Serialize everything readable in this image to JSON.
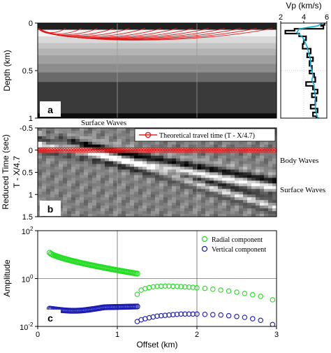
{
  "figure": {
    "panel_labels": {
      "a": "a",
      "b": "b",
      "c": "c"
    },
    "annotations": {
      "surface_top": "Surface Waves",
      "body_waves": "Body Waves",
      "surface_right": "Surface Waves"
    }
  },
  "chart_data": [
    {
      "id": "a",
      "type": "heatmap",
      "ylabel": "Depth (km)",
      "xlim": [
        0,
        3
      ],
      "ylim": [
        1,
        0
      ],
      "yticks": [
        "0",
        "0.5",
        "1"
      ],
      "grid": true,
      "layers": [
        {
          "top": 0.0,
          "bottom": 0.07,
          "gray": "#202020"
        },
        {
          "top": 0.07,
          "bottom": 0.14,
          "gray": "#f2f2f2"
        },
        {
          "top": 0.14,
          "bottom": 0.21,
          "gray": "#d9d9d9"
        },
        {
          "top": 0.21,
          "bottom": 0.27,
          "gray": "#c4c4c4"
        },
        {
          "top": 0.27,
          "bottom": 0.34,
          "gray": "#b3b3b3"
        },
        {
          "top": 0.34,
          "bottom": 0.43,
          "gray": "#a0a0a0"
        },
        {
          "top": 0.43,
          "bottom": 0.52,
          "gray": "#8c8c8c"
        },
        {
          "top": 0.52,
          "bottom": 0.62,
          "gray": "#6a6a6a"
        },
        {
          "top": 0.62,
          "bottom": 0.95,
          "gray": "#3a3a3a"
        },
        {
          "top": 0.95,
          "bottom": 1.0,
          "gray": "#0d0d0d"
        }
      ],
      "rays": [
        {
          "start": 0.0,
          "end": 0.35,
          "depth": 0.05
        },
        {
          "start": 0.0,
          "end": 0.55,
          "depth": 0.07
        },
        {
          "start": 0.0,
          "end": 0.75,
          "depth": 0.08
        },
        {
          "start": 0.0,
          "end": 0.95,
          "depth": 0.09
        },
        {
          "start": 0.0,
          "end": 1.15,
          "depth": 0.1
        },
        {
          "start": 0.0,
          "end": 1.35,
          "depth": 0.11
        },
        {
          "start": 0.0,
          "end": 1.55,
          "depth": 0.12
        },
        {
          "start": 0.0,
          "end": 1.75,
          "depth": 0.125
        },
        {
          "start": 0.0,
          "end": 1.95,
          "depth": 0.13
        },
        {
          "start": 0.0,
          "end": 2.15,
          "depth": 0.135
        },
        {
          "start": 0.0,
          "end": 2.35,
          "depth": 0.14
        },
        {
          "start": 0.0,
          "end": 2.55,
          "depth": 0.145
        },
        {
          "start": 0.0,
          "end": 2.75,
          "depth": 0.15
        },
        {
          "start": 0.0,
          "end": 2.95,
          "depth": 0.155
        }
      ]
    },
    {
      "id": "vp",
      "type": "line",
      "title": "Vp (km/s)",
      "xlim": [
        2,
        6
      ],
      "xticks": [
        "2",
        "4",
        "6"
      ],
      "ylim": [
        1,
        0
      ],
      "series": [
        {
          "color": "#000000",
          "depth": [
            0.0,
            0.02,
            0.03,
            0.06,
            0.08,
            0.11,
            0.14,
            0.18,
            0.22,
            0.27,
            0.32,
            0.36,
            0.4,
            0.45,
            0.5,
            0.53,
            0.57,
            0.62,
            0.66,
            0.7,
            0.74,
            0.78,
            0.82,
            0.86,
            0.9,
            0.94,
            0.98,
            1.0
          ],
          "vp": [
            5.8,
            5.5,
            5.7,
            3.2,
            2.4,
            3.6,
            4.2,
            4.0,
            3.9,
            4.6,
            4.3,
            4.8,
            4.5,
            4.7,
            4.5,
            4.9,
            5.0,
            4.2,
            4.8,
            5.2,
            4.7,
            5.1,
            5.0,
            4.6,
            5.2,
            4.8,
            5.1,
            5.3
          ]
        },
        {
          "color": "#00b4d8",
          "depth": [
            0.0,
            0.03,
            0.06,
            0.1,
            0.15,
            0.2,
            0.25,
            0.3,
            0.35,
            0.4,
            0.45,
            0.5,
            0.55,
            0.6,
            0.65,
            0.7,
            0.75,
            0.8,
            0.85,
            0.9,
            0.95,
            1.0
          ],
          "vp": [
            5.6,
            5.2,
            3.6,
            3.4,
            3.9,
            4.1,
            4.3,
            4.4,
            4.5,
            4.6,
            4.6,
            4.7,
            4.8,
            4.7,
            4.9,
            4.9,
            5.0,
            5.0,
            5.0,
            5.0,
            5.1,
            5.2
          ]
        }
      ]
    },
    {
      "id": "b",
      "type": "heatmap",
      "ylabel": "Reduced Time (sec)",
      "ylabel2": "T - X/4.7",
      "xlim": [
        0,
        3
      ],
      "ylim": [
        -0.5,
        1.5
      ],
      "yticks": [
        "-0.5",
        "0",
        "0.5",
        "1",
        "1.5"
      ],
      "legend": "Theoretical travel time (T  -  X/4.7)",
      "legend_position": "top-right",
      "theoretical_travel_time": 0.0,
      "marker_count": 90
    },
    {
      "id": "c",
      "type": "scatter",
      "ylabel": "Amplitude",
      "xlabel": "Offset (km)",
      "xlim": [
        0,
        3
      ],
      "xticks": [
        "0",
        "1",
        "2",
        "3"
      ],
      "ylog": true,
      "ylim": [
        0.01,
        100
      ],
      "yticks": [
        {
          "base": "10",
          "exp": "2"
        },
        {
          "base": "10",
          "exp": "0"
        },
        {
          "base": "10",
          "exp": "-2"
        }
      ],
      "legend_position": "top-right",
      "series": [
        {
          "name": "Radial component",
          "color": "#22dd22",
          "near": {
            "x0": 0.15,
            "x1": 1.25,
            "y0": 12,
            "y1": 1.6,
            "n": 70
          },
          "far": {
            "x": [
              1.25,
              1.3,
              1.35,
              1.4,
              1.45,
              1.5,
              1.55,
              1.6,
              1.65,
              1.7,
              1.75,
              1.8,
              1.85,
              1.9,
              1.95,
              2.0,
              2.1,
              2.2,
              2.3,
              2.4,
              2.5,
              2.6,
              2.7,
              2.8,
              2.95
            ],
            "y": [
              0.22,
              0.33,
              0.38,
              0.42,
              0.45,
              0.47,
              0.48,
              0.49,
              0.49,
              0.48,
              0.47,
              0.46,
              0.45,
              0.44,
              0.43,
              0.41,
              0.39,
              0.36,
              0.33,
              0.3,
              0.27,
              0.24,
              0.21,
              0.18,
              0.13
            ]
          }
        },
        {
          "name": "Vertical component",
          "color": "#1a1ab4",
          "near": {
            "x0": 0.15,
            "x1": 1.25,
            "y0": 0.055,
            "y1": 0.068,
            "n": 70
          },
          "far": {
            "x": [
              1.25,
              1.3,
              1.35,
              1.4,
              1.45,
              1.5,
              1.55,
              1.6,
              1.65,
              1.7,
              1.75,
              1.8,
              1.85,
              1.9,
              1.95,
              2.0,
              2.1,
              2.2,
              2.3,
              2.4,
              2.5,
              2.6,
              2.7,
              2.8,
              2.95
            ],
            "y": [
              0.016,
              0.019,
              0.021,
              0.023,
              0.025,
              0.027,
              0.028,
              0.029,
              0.03,
              0.031,
              0.032,
              0.033,
              0.033,
              0.033,
              0.033,
              0.033,
              0.032,
              0.031,
              0.03,
              0.028,
              0.026,
              0.024,
              0.021,
              0.018,
              0.012
            ]
          }
        }
      ]
    }
  ]
}
